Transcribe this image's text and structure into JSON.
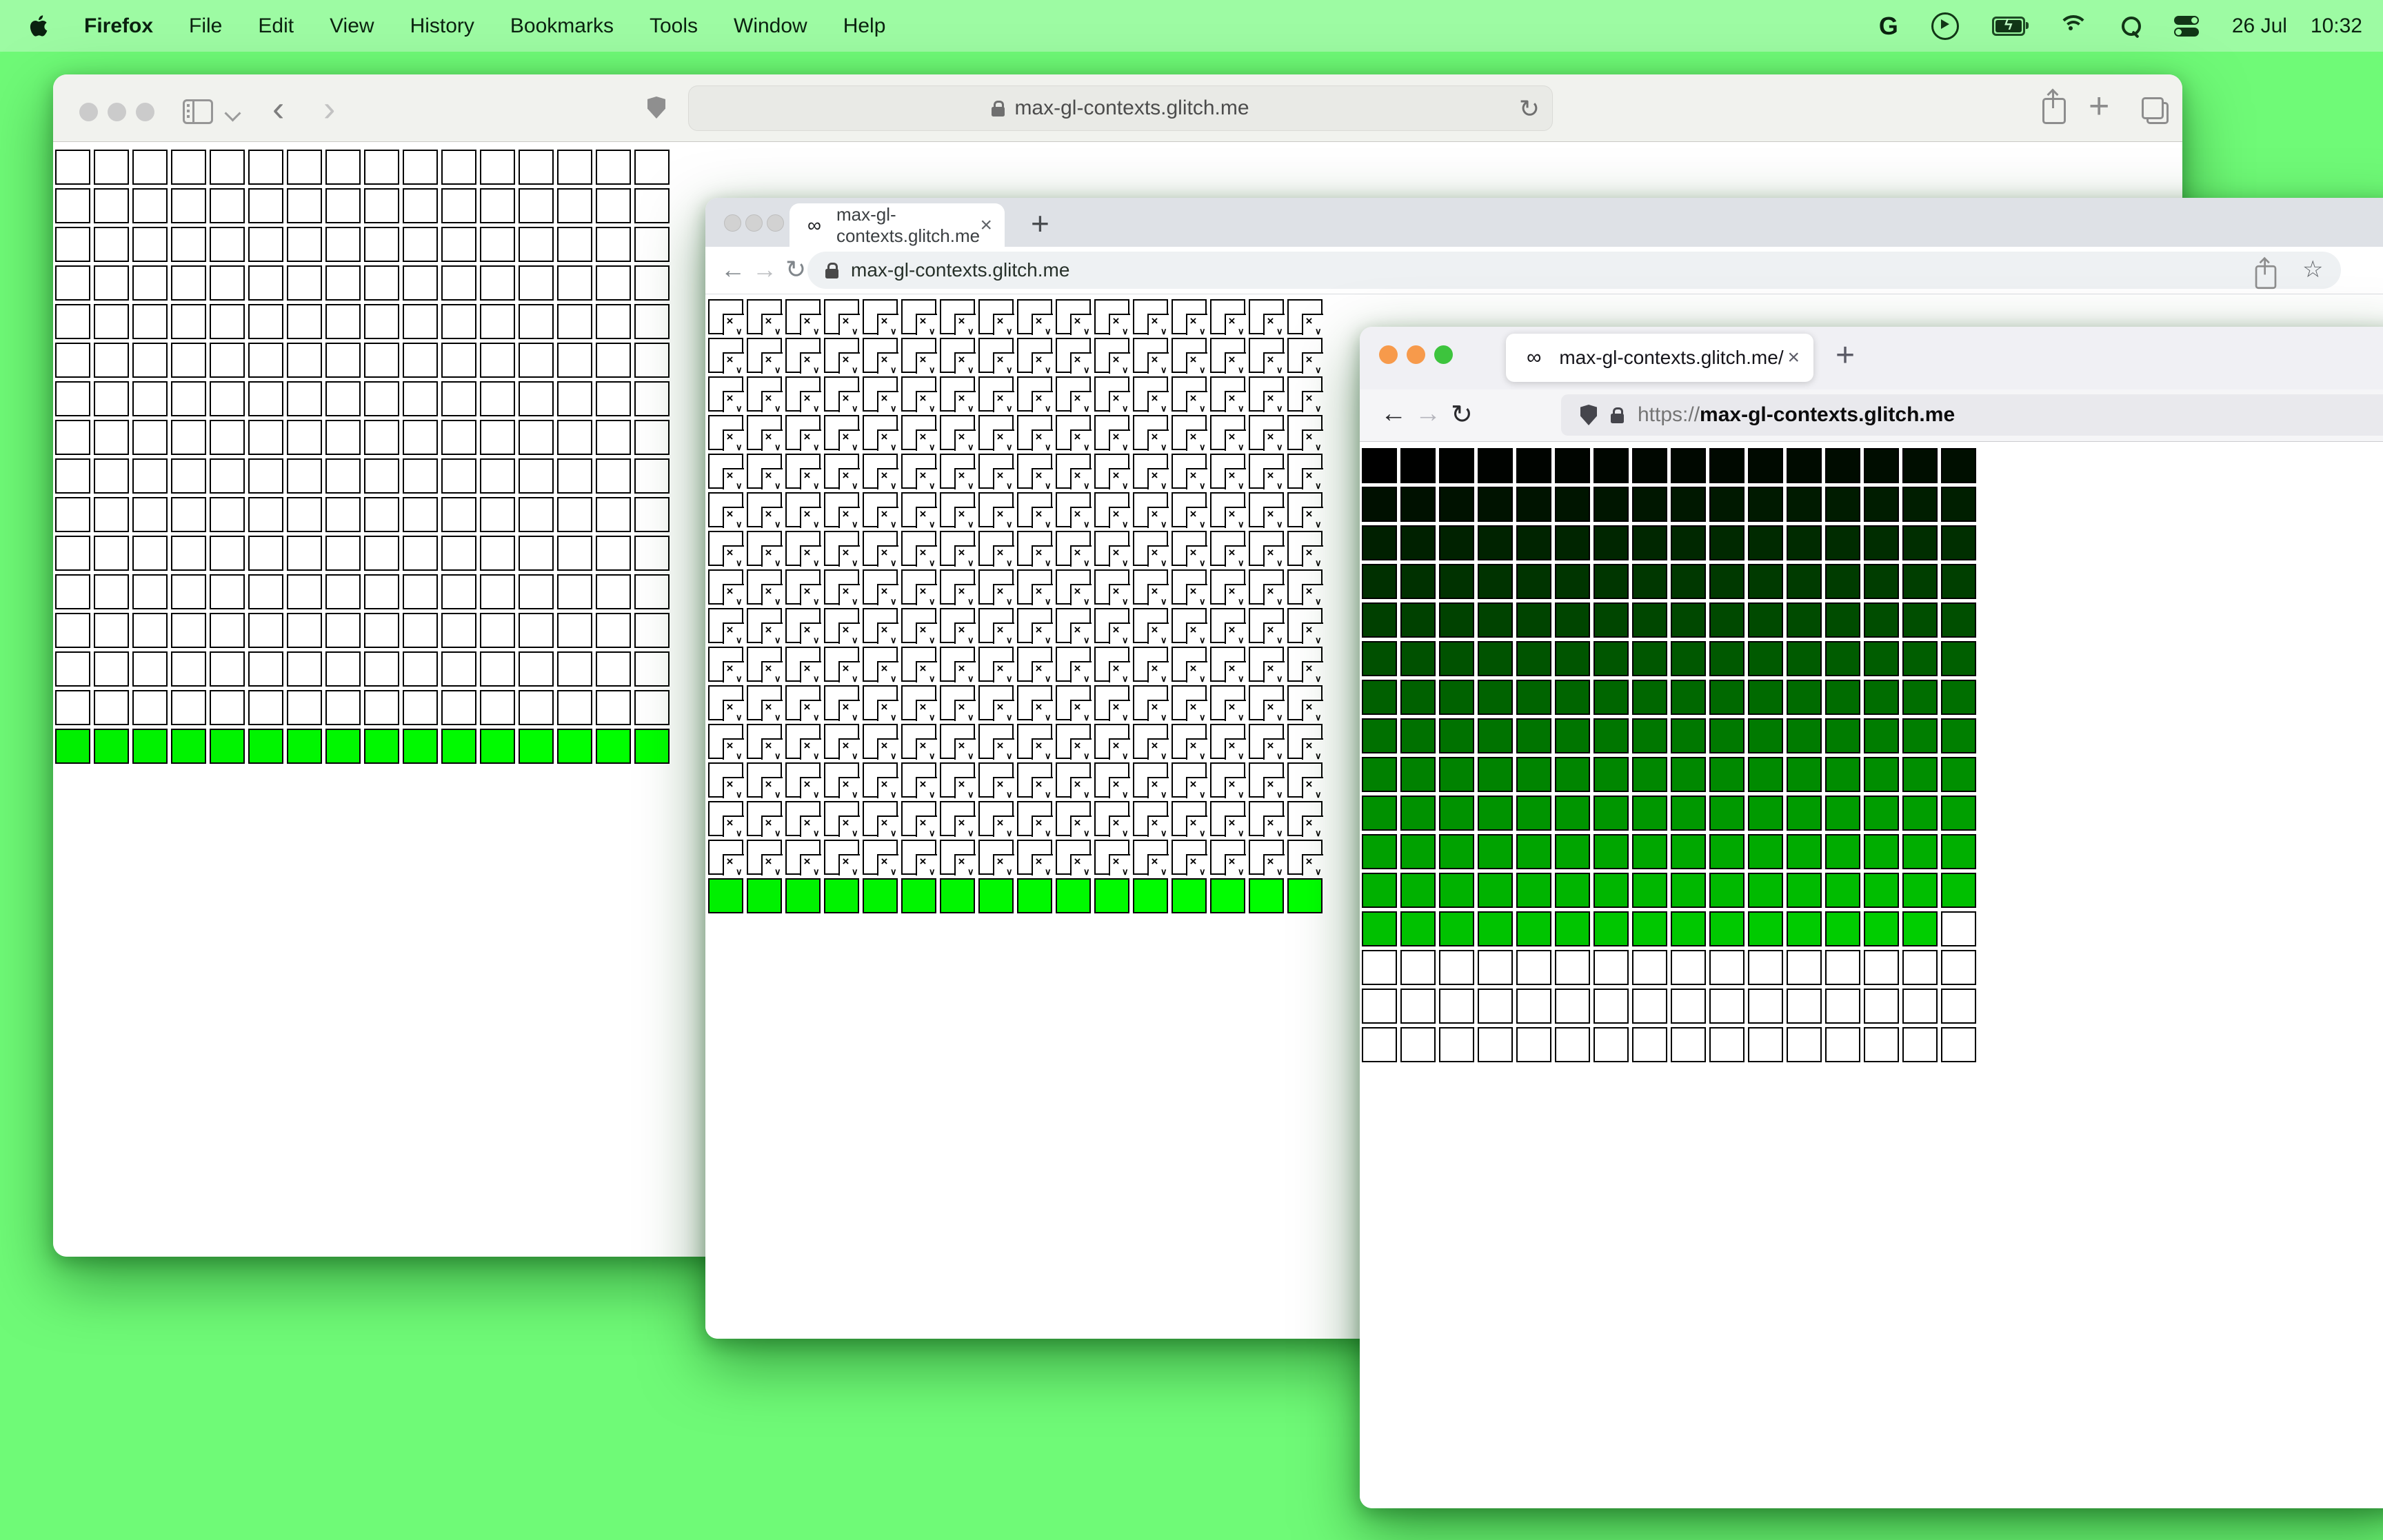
{
  "menu_bar": {
    "app_name": "Firefox",
    "items": [
      "File",
      "Edit",
      "View",
      "History",
      "Bookmarks",
      "Tools",
      "Window",
      "Help"
    ],
    "status": {
      "google_label": "G",
      "date": "26 Jul",
      "time": "10:32"
    }
  },
  "glyphs": {
    "infinity": "∞",
    "close": "×",
    "plus": "+",
    "reload": "↻",
    "back_chevron": "‹",
    "forward_chevron": "›",
    "back_arrow": "←",
    "forward_arrow": "→",
    "star": "☆",
    "bolt": "ϟ",
    "broken_x": "×",
    "broken_v": "∨"
  },
  "safari_window": {
    "url": "max-gl-contexts.glitch.me"
  },
  "chrome_window": {
    "tab_favicon": "∞",
    "tab_title": "max-gl-contexts.glitch.me",
    "url": "max-gl-contexts.glitch.me"
  },
  "firefox_window": {
    "tab_favicon": "∞",
    "tab_title": "max-gl-contexts.glitch.me/",
    "url_scheme": "https://",
    "url_host": "max-gl-contexts.glitch.me"
  },
  "grids": {
    "safari": {
      "cols": 16,
      "rows": 16,
      "style": "empty-cells-green-last-row",
      "green_g_base": 240
    },
    "chrome": {
      "cols": 16,
      "rows": 16,
      "style": "broken-image-cells-green-last-row",
      "green_g_base": 240
    },
    "firefox": {
      "cols": 16,
      "rows": 16,
      "style": "green-ramp",
      "colored_cells": 207,
      "g_equals_cell_index": true
    }
  },
  "colors": {
    "desktop": "#6ffa77",
    "menubar": "#9dfba3",
    "cell_border": "#000000",
    "cell_green_max": "#00ff00",
    "inactive_traffic_light": "#cbcbcb",
    "firefox_traffic_close": "#f79a4b",
    "firefox_traffic_min": "#f79a4b",
    "firefox_traffic_zoom": "#3dc43d",
    "chrome_tabstrip": "#dee1e6",
    "safari_toolbar": "#f1f2ee",
    "firefox_tabstrip": "#f0f0f4"
  }
}
